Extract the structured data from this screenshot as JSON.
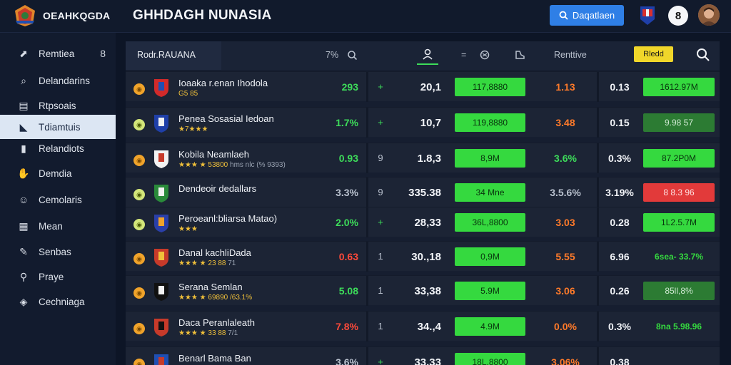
{
  "header": {
    "brand": "OEAHKQGDA",
    "title": "GHHDAGH NUNASIA",
    "search_button": "Daqatlaen",
    "bell_label": "8"
  },
  "sidebar": {
    "items": [
      {
        "label": "Remtiea",
        "icon": "chart-icon",
        "badge": "8"
      },
      {
        "label": "Delandarins",
        "icon": "search-icon"
      },
      {
        "label": "Rtpsoais",
        "icon": "document-icon"
      },
      {
        "label": "Tdiamtuis",
        "icon": "shoe-icon",
        "active": true
      },
      {
        "label": "Relandiots",
        "icon": "bookmark-icon"
      },
      {
        "label": "Demdia",
        "icon": "thumb-icon"
      },
      {
        "label": "Cemolaris",
        "icon": "user-icon"
      },
      {
        "label": "Mean",
        "icon": "table-icon"
      },
      {
        "label": "Senbas",
        "icon": "pen-icon"
      },
      {
        "label": "Praye",
        "icon": "pin-icon"
      },
      {
        "label": "Cechniaga",
        "icon": "tag-icon"
      }
    ]
  },
  "table": {
    "tab_label": "Rodr.RAUANA",
    "headers": {
      "h1": "7%",
      "h3": "=",
      "h5": "Renttive",
      "badge": "Rledd"
    },
    "rows": [
      {
        "name": "Ioaaka r.enan Ihodola",
        "sub": "G5 85",
        "sub_extra": "",
        "a": "293",
        "a_color": "green",
        "b": "+",
        "c": "20,1",
        "pill": "117,8880",
        "d": "1.13",
        "d_color": "orange",
        "e": "0.13",
        "f": "1612.97M",
        "f_style": "bright",
        "coin": "orange"
      },
      {
        "name": "Penea Sosasial Iedoan",
        "sub": "★7★★★",
        "sub_extra": "",
        "a": "1.7%",
        "a_color": "green",
        "b": "+",
        "c": "10,7",
        "pill": "119,8880",
        "d": "3.48",
        "d_color": "orange",
        "e": "0.15",
        "f": "9.98 57",
        "f_style": "dark",
        "coin": "green"
      },
      {
        "name": "Kobila Neamlaeh",
        "sub": "★★★ ★ 53800",
        "sub_extra": "hms nlc (% 9393)",
        "a": "0.93",
        "a_color": "green",
        "b": "9",
        "c": "1.8,3",
        "pill": "8,9M",
        "d": "3.6%",
        "d_color": "green",
        "e": "0.3%",
        "f": "87.2P0M",
        "f_style": "bright",
        "coin": "orange"
      },
      {
        "name": "Dendeoir dedallars",
        "sub": "",
        "sub_extra": "",
        "a": "3.3%",
        "a_color": "grey",
        "b": "9",
        "c": "335.38",
        "pill": "34 Mne",
        "d": "3.5.6%",
        "d_color": "grey",
        "e": "3.19%",
        "f": "8 8.3 96",
        "f_style": "red",
        "coin": "green"
      },
      {
        "name": "Peroeanl:bliarsa Matao)",
        "sub": "★★★",
        "sub_extra": "",
        "a": "2.0%",
        "a_color": "green",
        "b": "+",
        "c": "28,33",
        "pill": "36L,8800",
        "d": "3.03",
        "d_color": "orange",
        "e": "0.28",
        "f": "1L2.5.7M",
        "f_style": "bright",
        "coin": "green"
      },
      {
        "name": "Danal kachliDada",
        "sub": "★★★ ★ 23 88",
        "sub_extra": "71",
        "a": "0.63",
        "a_color": "red",
        "b": "1",
        "c": "30.,18",
        "pill": "0,9M",
        "d": "5.55",
        "d_color": "orange",
        "e": "6.96",
        "f": "6sea- 33.7%",
        "f_style": "none",
        "coin": "orange"
      },
      {
        "name": "Serana Semlan",
        "sub": "★★★ ★ 69890 /63.1%",
        "sub_extra": "",
        "a": "5.08",
        "a_color": "green",
        "b": "1",
        "c": "33,38",
        "pill": "5.9M",
        "d": "3.06",
        "d_color": "orange",
        "e": "0.26",
        "f": "85ll,8%",
        "f_style": "dark",
        "coin": "orange"
      },
      {
        "name": "Daca Peranlaleath",
        "sub": "★★★ ★ 33 88",
        "sub_extra": "7/1",
        "a": "7.8%",
        "a_color": "red",
        "b": "1",
        "c": "34.,4",
        "pill": "4.9M",
        "d": "0.0%",
        "d_color": "orange",
        "e": "0.3%",
        "f": "8na 5.98.96",
        "f_style": "none",
        "coin": "orange"
      },
      {
        "name": "Benarl Bama Ban",
        "sub": "",
        "sub_extra": "",
        "a": "3.6%",
        "a_color": "grey",
        "b": "+",
        "c": "33.33",
        "pill": "18L,8800",
        "d": "3.06%",
        "d_color": "orange",
        "e": "0.38",
        "f": "",
        "f_style": "none",
        "coin": "orange"
      }
    ]
  }
}
